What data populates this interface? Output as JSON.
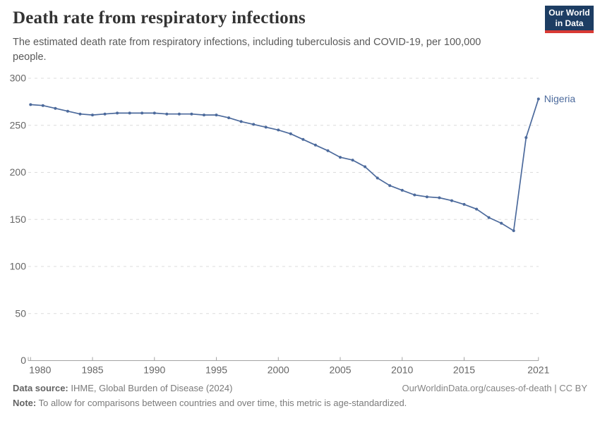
{
  "logo": {
    "line1": "Our World",
    "line2": "in Data",
    "bg_color": "#1d3d63",
    "accent_color": "#d93a34"
  },
  "chart_data": {
    "type": "line",
    "title": "Death rate from respiratory infections",
    "subtitle": "The estimated death rate from respiratory infections, including tuberculosis and COVID-19, per 100,000 people.",
    "x_years": [
      1980,
      1981,
      1982,
      1983,
      1984,
      1985,
      1986,
      1987,
      1988,
      1989,
      1990,
      1991,
      1992,
      1993,
      1994,
      1995,
      1996,
      1997,
      1998,
      1999,
      2000,
      2001,
      2002,
      2003,
      2004,
      2005,
      2006,
      2007,
      2008,
      2009,
      2010,
      2011,
      2012,
      2013,
      2014,
      2015,
      2016,
      2017,
      2018,
      2019,
      2020,
      2021
    ],
    "series": [
      {
        "name": "Nigeria",
        "color": "#4C6A9C",
        "values": [
          272,
          271,
          268,
          265,
          262,
          261,
          262,
          263,
          263,
          263,
          263,
          262,
          262,
          262,
          261,
          261,
          258,
          254,
          251,
          248,
          245,
          241,
          235,
          229,
          223,
          216,
          213,
          206,
          194,
          186,
          181,
          176,
          174,
          173,
          170,
          166,
          161,
          152,
          146,
          138,
          237,
          278
        ]
      }
    ],
    "ylim": [
      0,
      300
    ],
    "yticks": [
      0,
      50,
      100,
      150,
      200,
      250,
      300
    ],
    "xticks": [
      1980,
      1985,
      1990,
      1995,
      2000,
      2005,
      2010,
      2015,
      2021
    ],
    "grid": "horizontal-dashed",
    "legend_position": "end-of-line",
    "end_label": "Nigeria",
    "grid_color": "#dcdcdc",
    "axis_color": "#a3a3a3",
    "tick_label_color": "#666666"
  },
  "footer": {
    "data_source_label": "Data source:",
    "data_source_value": "IHME, Global Burden of Disease (2024)",
    "link": "OurWorldinData.org/causes-of-death | CC BY",
    "note_label": "Note:",
    "note_value": "To allow for comparisons between countries and over time, this metric is age-standardized."
  }
}
